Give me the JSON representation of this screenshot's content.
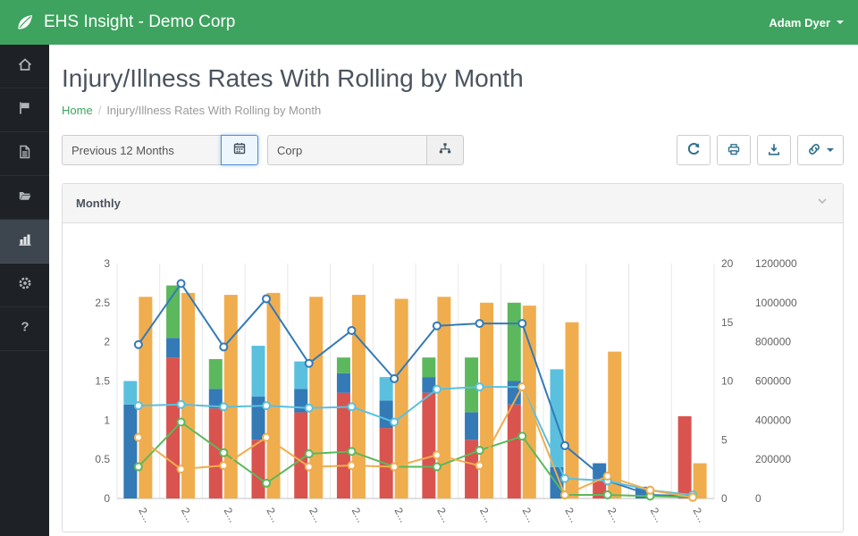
{
  "header": {
    "title": "EHS Insight - Demo Corp",
    "user": "Adam Dyer",
    "logo_icon": "leaf-icon",
    "accent_color": "#3ea35f"
  },
  "sidebar": {
    "items": [
      {
        "icon": "home-icon",
        "active": false
      },
      {
        "icon": "flag-icon",
        "active": false
      },
      {
        "icon": "document-icon",
        "active": false
      },
      {
        "icon": "folder-open-icon",
        "active": false
      },
      {
        "icon": "bar-chart-icon",
        "active": true
      },
      {
        "icon": "gear-icon",
        "active": false
      },
      {
        "icon": "help-icon",
        "active": false
      }
    ]
  },
  "page": {
    "title": "Injury/Illness Rates With Rolling by Month",
    "breadcrumb": {
      "home": "Home",
      "separator": "/",
      "current": "Injury/Illness Rates With Rolling by Month"
    }
  },
  "filters": {
    "date_range": {
      "value": "Previous 12 Months",
      "icon": "calendar-icon"
    },
    "org": {
      "value": "Corp",
      "icon": "sitemap-icon"
    },
    "actions": [
      {
        "icon": "refresh-icon"
      },
      {
        "icon": "print-icon"
      },
      {
        "icon": "download-icon"
      },
      {
        "icon": "link-icon",
        "has_caret": true
      }
    ]
  },
  "panel": {
    "title": "Monthly",
    "collapse_icon": "chevron-down-icon"
  },
  "chart_data": {
    "type": "bar",
    "subtype": "stacked-bar-and-line-combo",
    "title": "Monthly",
    "categories": [
      "2...",
      "2...",
      "2...",
      "2...",
      "2...",
      "2...",
      "2...",
      "2...",
      "2...",
      "2...",
      "2...",
      "2...",
      "2...",
      "2..."
    ],
    "x_labels_rotated": true,
    "grid": "vertical-only",
    "legend": "none",
    "axes": {
      "left": {
        "min": 0,
        "max": 3,
        "ticks": [
          "0",
          "0.5",
          "1",
          "1.5",
          "2",
          "2.5",
          "3"
        ]
      },
      "right": {
        "min": 0,
        "max": 20,
        "ticks": [
          "0",
          "5",
          "10",
          "15",
          "20"
        ]
      },
      "far_right": {
        "min": 0,
        "max": 1200000,
        "ticks": [
          "0",
          "200000",
          "400000",
          "600000",
          "800000",
          "1000000",
          "1200000"
        ]
      }
    },
    "stacked_bar_series": [
      {
        "name": "rate-red",
        "color": "#d9534f",
        "axis": "left",
        "values": [
          0,
          1.8,
          1.15,
          0.75,
          1.1,
          1.35,
          0.9,
          1.35,
          0.75,
          1.2,
          0,
          0.25,
          0,
          1.05
        ]
      },
      {
        "name": "rate-blue",
        "color": "#337ab7",
        "axis": "left",
        "values": [
          1.2,
          0.25,
          0.25,
          0.55,
          0.3,
          0.25,
          0.35,
          0.2,
          0.35,
          0.3,
          0.4,
          0.2,
          0.15,
          0
        ]
      },
      {
        "name": "rate-light-blue",
        "color": "#5bc0de",
        "axis": "left",
        "values": [
          0.3,
          0,
          0,
          0.65,
          0.35,
          0,
          0.3,
          0,
          0,
          0,
          1.25,
          0,
          0,
          0
        ]
      },
      {
        "name": "rate-green",
        "color": "#5cb85c",
        "axis": "left",
        "values": [
          0,
          0.67,
          0.38,
          0,
          0,
          0.2,
          0,
          0.25,
          0.7,
          1.0,
          0,
          0,
          0,
          0
        ]
      }
    ],
    "bar_series": [
      {
        "name": "hours-orange",
        "color": "#f0ad4e",
        "axis": "far_right",
        "values": [
          1030000,
          1050000,
          1040000,
          1050000,
          1030000,
          1040000,
          1020000,
          1030000,
          1000000,
          985000,
          900000,
          750000,
          0,
          180000
        ]
      }
    ],
    "line_series": [
      {
        "name": "line-blue",
        "color": "#337ab7",
        "axis": "right",
        "values": [
          13.1,
          18.3,
          12.9,
          17,
          11.5,
          14.3,
          10.2,
          14.7,
          14.9,
          14.9,
          4.5,
          1.5,
          0.3,
          0.2
        ]
      },
      {
        "name": "line-light-blue",
        "color": "#5bc0de",
        "axis": "right",
        "values": [
          7.9,
          8,
          7.8,
          7.9,
          7.7,
          7.8,
          6.5,
          9.3,
          9.5,
          9.5,
          1.7,
          1.5,
          0.7,
          0.3
        ]
      },
      {
        "name": "line-green",
        "color": "#5cb85c",
        "axis": "right",
        "values": [
          2.7,
          6.5,
          3.9,
          1.3,
          3.8,
          4,
          2.7,
          2.7,
          4.1,
          5.3,
          0.3,
          0.3,
          0.2,
          0.1
        ]
      },
      {
        "name": "line-orange",
        "color": "#f0ad4e",
        "axis": "right",
        "values": [
          5.2,
          2.5,
          2.8,
          5.2,
          2.7,
          2.8,
          2.7,
          3.7,
          2.8,
          9.5,
          0.3,
          1.9,
          0.7,
          0.1
        ]
      }
    ]
  }
}
